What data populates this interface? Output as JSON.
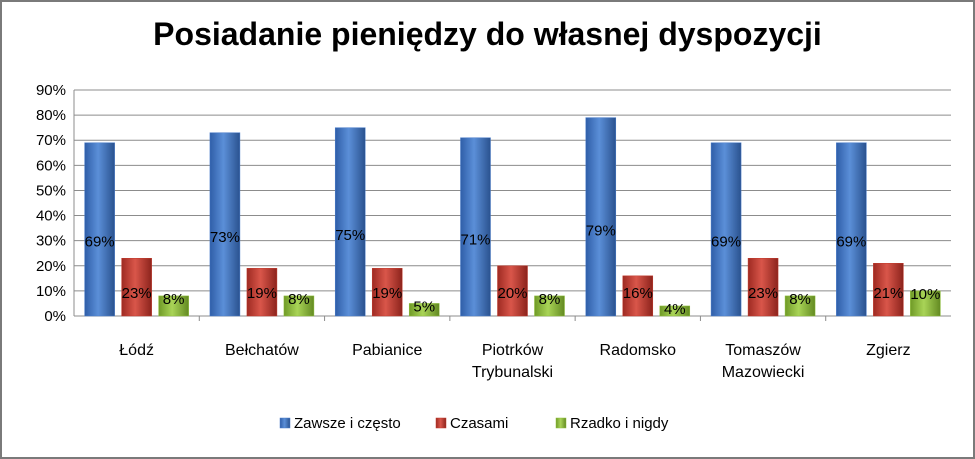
{
  "chart_data": {
    "type": "bar",
    "title": "Posiadanie pieniędzy do własnej dyspozycji",
    "xlabel": "",
    "ylabel": "",
    "ylim": [
      0,
      90
    ],
    "yticks": [
      "0%",
      "10%",
      "20%",
      "30%",
      "40%",
      "50%",
      "60%",
      "70%",
      "80%",
      "90%"
    ],
    "grid": true,
    "legend_position": "bottom",
    "categories": [
      [
        "Łódź"
      ],
      [
        "Bełchatów"
      ],
      [
        "Pabianice"
      ],
      [
        "Piotrków",
        "Trybunalski"
      ],
      [
        "Radomsko"
      ],
      [
        "Tomaszów",
        "Mazowiecki"
      ],
      [
        "Zgierz"
      ]
    ],
    "series": [
      {
        "name": "Zawsze i często",
        "color": "#4a7cc9",
        "values": [
          69,
          73,
          75,
          71,
          79,
          69,
          69
        ],
        "labels": [
          "69%",
          "73%",
          "75%",
          "71%",
          "79%",
          "69%",
          "69%"
        ]
      },
      {
        "name": "Czasami",
        "color": "#c0392b",
        "values": [
          23,
          19,
          19,
          20,
          16,
          23,
          21
        ],
        "labels": [
          "23%",
          "19%",
          "19%",
          "20%",
          "16%",
          "23%",
          "21%"
        ]
      },
      {
        "name": "Rzadko i nigdy",
        "color": "#8fbf3a",
        "values": [
          8,
          8,
          5,
          8,
          4,
          8,
          10
        ],
        "labels": [
          "8%",
          "8%",
          "5%",
          "8%",
          "4%",
          "8%",
          "10%"
        ]
      }
    ]
  }
}
